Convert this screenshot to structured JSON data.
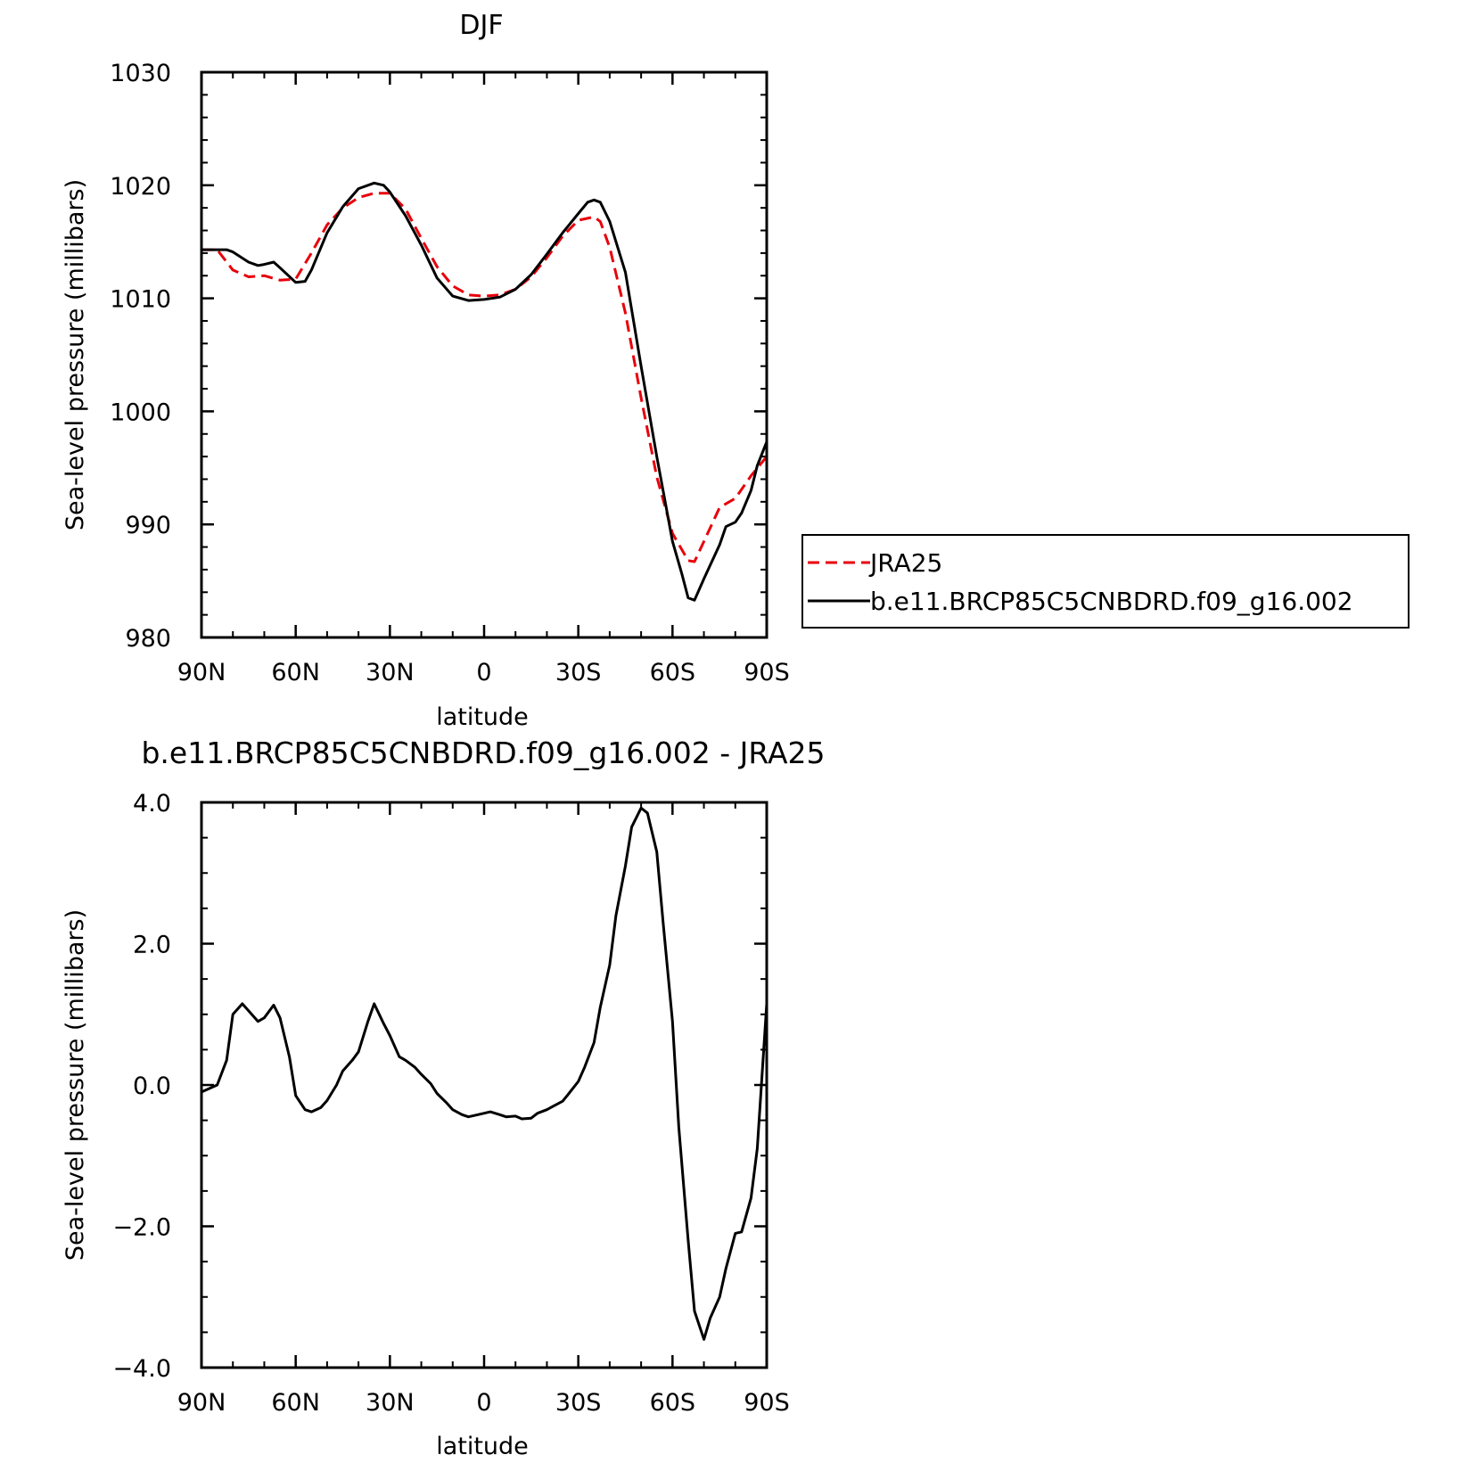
{
  "chart_data": [
    {
      "type": "line",
      "title": "DJF",
      "xlabel": "latitude",
      "ylabel": "Sea-level pressure (millibars)",
      "xlim": [
        90,
        -90
      ],
      "ylim": [
        980,
        1030
      ],
      "x_ticks": [
        {
          "value": 90,
          "label": "90N"
        },
        {
          "value": 60,
          "label": "60N"
        },
        {
          "value": 30,
          "label": "30N"
        },
        {
          "value": 0,
          "label": "0"
        },
        {
          "value": -30,
          "label": "30S"
        },
        {
          "value": -60,
          "label": "60S"
        },
        {
          "value": -90,
          "label": "90S"
        }
      ],
      "y_ticks": [
        {
          "value": 1030,
          "label": "1030"
        },
        {
          "value": 1020,
          "label": "1020"
        },
        {
          "value": 1010,
          "label": "1010"
        },
        {
          "value": 1000,
          "label": "1000"
        },
        {
          "value": 990,
          "label": "990"
        },
        {
          "value": 980,
          "label": "980"
        }
      ],
      "legend": {
        "placement": "outside-right"
      },
      "series": [
        {
          "name": "JRA25",
          "color": "#e8000b",
          "dash": "dashed",
          "x": [
            90,
            85,
            80,
            75,
            70,
            65,
            60,
            55,
            50,
            45,
            40,
            35,
            30,
            25,
            20,
            15,
            10,
            5,
            0,
            -5,
            -10,
            -15,
            -20,
            -25,
            -30,
            -35,
            -37,
            -40,
            -45,
            -50,
            -55,
            -60,
            -65,
            -67,
            -70,
            -75,
            -80,
            -85,
            -90
          ],
          "y": [
            1014.3,
            1014.3,
            1012.5,
            1011.9,
            1012.0,
            1011.6,
            1011.7,
            1014.0,
            1016.5,
            1018.0,
            1018.9,
            1019.3,
            1019.3,
            1017.9,
            1015.3,
            1012.8,
            1011.1,
            1010.3,
            1010.2,
            1010.3,
            1010.8,
            1011.9,
            1013.6,
            1015.5,
            1016.9,
            1017.2,
            1016.8,
            1014.5,
            1008.7,
            1001.2,
            994.2,
            989.2,
            986.8,
            986.7,
            988.5,
            991.5,
            992.3,
            994.3,
            996.0
          ]
        },
        {
          "name": "b.e11.BRCP85C5CNBDRD.f09_g16.002",
          "color": "#000000",
          "dash": "solid",
          "x": [
            90,
            85,
            82,
            80,
            75,
            72,
            70,
            67,
            65,
            60,
            57,
            55,
            50,
            45,
            40,
            35,
            32,
            30,
            25,
            20,
            15,
            10,
            5,
            0,
            -5,
            -10,
            -15,
            -20,
            -25,
            -30,
            -33,
            -35,
            -37,
            -40,
            -45,
            -50,
            -55,
            -60,
            -63,
            -65,
            -67,
            -70,
            -75,
            -77,
            -80,
            -82,
            -85,
            -87,
            -90
          ],
          "y": [
            1014.3,
            1014.3,
            1014.3,
            1014.1,
            1013.2,
            1012.9,
            1013.0,
            1013.2,
            1012.7,
            1011.4,
            1011.5,
            1012.5,
            1015.8,
            1018.1,
            1019.7,
            1020.2,
            1020.0,
            1019.4,
            1017.3,
            1014.7,
            1011.8,
            1010.2,
            1009.8,
            1009.9,
            1010.1,
            1010.8,
            1012.1,
            1013.9,
            1015.8,
            1017.5,
            1018.5,
            1018.7,
            1018.5,
            1016.8,
            1012.3,
            1004.0,
            996.0,
            988.5,
            985.6,
            983.5,
            983.3,
            985.2,
            988.2,
            989.8,
            990.2,
            991.0,
            993.0,
            995.2,
            997.3
          ]
        }
      ]
    },
    {
      "type": "line",
      "title": "b.e11.BRCP85C5CNBDRD.f09_g16.002 - JRA25",
      "xlabel": "latitude",
      "ylabel": "Sea-level pressure (millibars)",
      "xlim": [
        90,
        -90
      ],
      "ylim": [
        -4.0,
        4.0
      ],
      "x_ticks": [
        {
          "value": 90,
          "label": "90N"
        },
        {
          "value": 60,
          "label": "60N"
        },
        {
          "value": 30,
          "label": "30N"
        },
        {
          "value": 0,
          "label": "0"
        },
        {
          "value": -30,
          "label": "30S"
        },
        {
          "value": -60,
          "label": "60S"
        },
        {
          "value": -90,
          "label": "90S"
        }
      ],
      "y_ticks": [
        {
          "value": 4,
          "label": "4.0"
        },
        {
          "value": 2,
          "label": "2.0"
        },
        {
          "value": 0,
          "label": "0.0"
        },
        {
          "value": -2,
          "label": "−2.0"
        },
        {
          "value": -4,
          "label": "−4.0"
        }
      ],
      "series": [
        {
          "color": "#000000",
          "dash": "solid",
          "x": [
            90,
            85,
            82,
            80,
            77,
            75,
            72,
            70,
            67,
            65,
            62,
            60,
            57,
            55,
            52,
            50,
            47,
            45,
            42,
            40,
            37,
            35,
            32,
            30,
            27,
            25,
            22,
            20,
            17,
            15,
            12,
            10,
            7,
            5,
            2,
            0,
            -2,
            -5,
            -7,
            -10,
            -12,
            -15,
            -17,
            -20,
            -22,
            -25,
            -27,
            -30,
            -32,
            -35,
            -37,
            -40,
            -42,
            -45,
            -47,
            -50,
            -52,
            -55,
            -57,
            -60,
            -62,
            -65,
            -67,
            -70,
            -72,
            -75,
            -77,
            -80,
            -82,
            -85,
            -87,
            -90
          ],
          "y": [
            -0.1,
            0.0,
            0.35,
            1.0,
            1.15,
            1.05,
            0.9,
            0.95,
            1.13,
            0.95,
            0.4,
            -0.15,
            -0.35,
            -0.38,
            -0.32,
            -0.22,
            0.0,
            0.2,
            0.35,
            0.47,
            0.9,
            1.15,
            0.87,
            0.7,
            0.4,
            0.35,
            0.25,
            0.15,
            0.02,
            -0.12,
            -0.25,
            -0.35,
            -0.42,
            -0.45,
            -0.42,
            -0.4,
            -0.38,
            -0.42,
            -0.45,
            -0.44,
            -0.48,
            -0.47,
            -0.4,
            -0.35,
            -0.3,
            -0.23,
            -0.12,
            0.05,
            0.25,
            0.6,
            1.1,
            1.7,
            2.4,
            3.1,
            3.65,
            3.92,
            3.85,
            3.3,
            2.3,
            0.9,
            -0.6,
            -2.2,
            -3.2,
            -3.6,
            -3.3,
            -3.0,
            -2.6,
            -2.1,
            -2.08,
            -1.6,
            -0.9,
            1.15
          ]
        }
      ]
    }
  ]
}
